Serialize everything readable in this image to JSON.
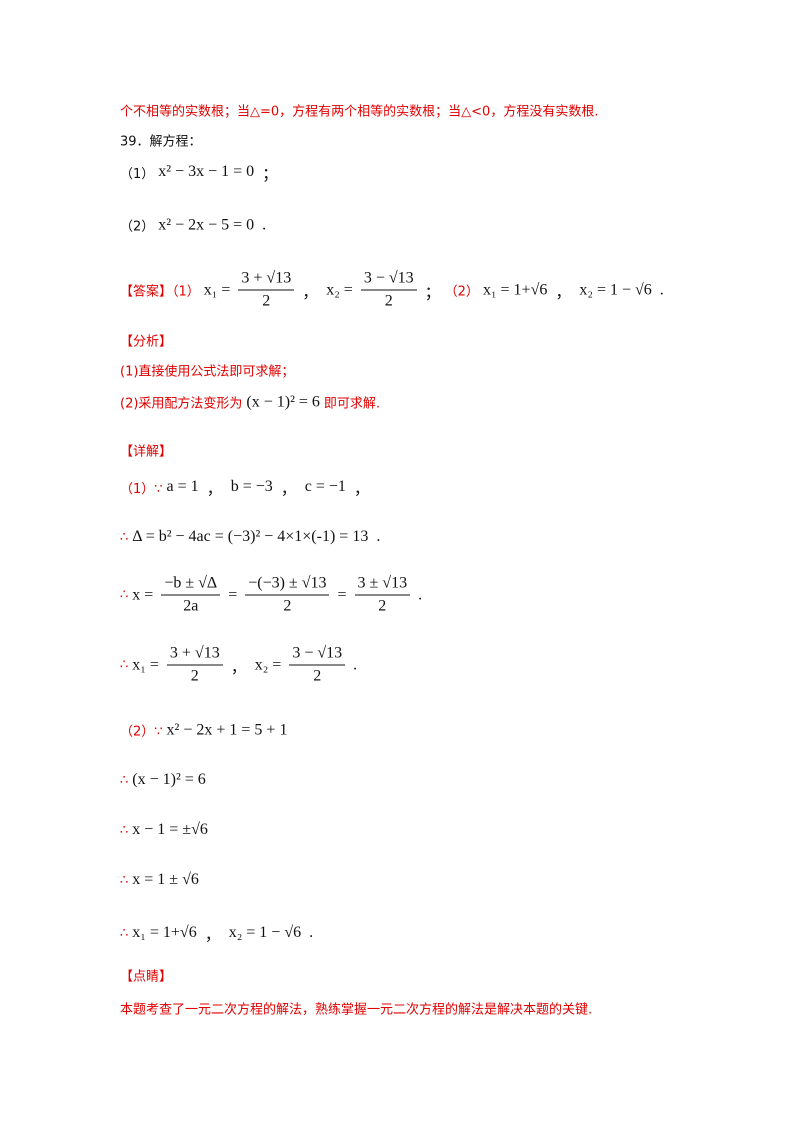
{
  "lines": [
    {
      "segments": [
        {
          "t": "个不相等的实数根；当△=0，方程有两个相等的实数根；当△<0，方程没有实数根."
        }
      ]
    },
    {
      "segments": [
        {
          "t": "39．解方程："
        }
      ]
    },
    {
      "segments": [
        {
          "t": "（1）"
        },
        {
          "m": "x² − 3x − 1 = 0"
        },
        {
          "m": "；"
        }
      ]
    },
    {
      "segments": [
        {
          "t": "（2）"
        },
        {
          "m": "x² − 2x − 5 = 0"
        },
        {
          "m": "."
        }
      ]
    },
    {
      "segments": [
        {
          "t": "【答案】（1）"
        },
        {
          "m": "x₁ ="
        },
        {
          "num": "3 + √13",
          "den": "2"
        },
        {
          "m": "，"
        },
        {
          "m": "x₂ ="
        },
        {
          "num": "3 − √13",
          "den": "2"
        },
        {
          "m": "；"
        },
        {
          "t": "（2）"
        },
        {
          "m": "x₁ = 1+√6"
        },
        {
          "m": "，"
        },
        {
          "m": "x₂ = 1 − √6"
        },
        {
          "m": "."
        }
      ]
    },
    {
      "segments": [
        {
          "t": "【分析】"
        }
      ]
    },
    {
      "segments": [
        {
          "t": "(1)直接使用公式法即可求解；"
        }
      ]
    },
    {
      "segments": [
        {
          "t": "(2)采用配方法变形为"
        },
        {
          "m": "(x − 1)² = 6"
        },
        {
          "t": "即可求解."
        }
      ]
    },
    {
      "segments": [
        {
          "t": "【详解】"
        }
      ]
    },
    {
      "segments": [
        {
          "t": "（1）∵"
        },
        {
          "m": "a = 1"
        },
        {
          "m": "，"
        },
        {
          "m": "b = −3"
        },
        {
          "m": "，"
        },
        {
          "m": "c = −1"
        },
        {
          "m": "，"
        }
      ]
    },
    {
      "segments": [
        {
          "t": "∴"
        },
        {
          "m": "Δ = b² − 4ac = (−3)² − 4×1×(-1) = 13"
        },
        {
          "m": "."
        }
      ]
    },
    {
      "segments": [
        {
          "t": "∴"
        },
        {
          "m": "x ="
        },
        {
          "num": "−b ± √Δ",
          "den": "2a"
        },
        {
          "m": "="
        },
        {
          "num": "−(−3) ± √13",
          "den": "2"
        },
        {
          "m": "="
        },
        {
          "num": "3 ± √13",
          "den": "2"
        },
        {
          "m": "."
        }
      ]
    },
    {
      "segments": [
        {
          "t": "∴"
        },
        {
          "m": "x₁ ="
        },
        {
          "num": "3 + √13",
          "den": "2"
        },
        {
          "m": "，"
        },
        {
          "m": "x₂ ="
        },
        {
          "num": "3 − √13",
          "den": "2"
        },
        {
          "m": "."
        }
      ]
    },
    {
      "segments": [
        {
          "t": "（2）∵"
        },
        {
          "m": "x² − 2x + 1 = 5 + 1"
        }
      ]
    },
    {
      "segments": [
        {
          "t": "∴"
        },
        {
          "m": "(x − 1)² = 6"
        }
      ]
    },
    {
      "segments": [
        {
          "t": "∴"
        },
        {
          "m": "x − 1 = ±√6"
        }
      ]
    },
    {
      "segments": [
        {
          "t": "∴"
        },
        {
          "m": "x = 1 ± √6"
        }
      ]
    },
    {
      "segments": [
        {
          "t": "∴"
        },
        {
          "m": "x₁ = 1+√6"
        },
        {
          "m": "，"
        },
        {
          "m": "x₂ = 1 − √6"
        },
        {
          "m": "."
        }
      ]
    },
    {
      "segments": [
        {
          "t": "【点睛】"
        }
      ]
    },
    {
      "segments": [
        {
          "t": "本题考查了一元二次方程的解法，熟练掌握一元二次方程的解法是解决本题的关键."
        }
      ]
    }
  ]
}
